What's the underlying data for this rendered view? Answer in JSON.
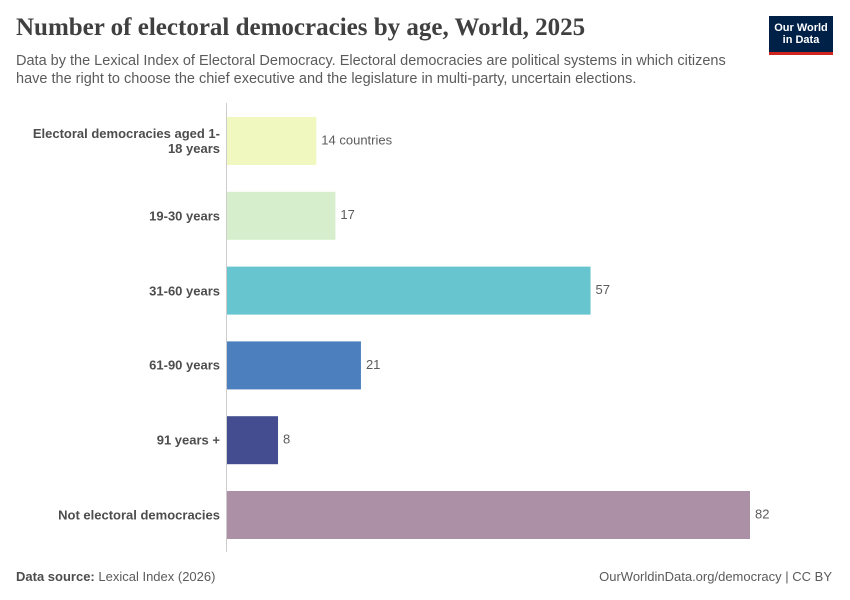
{
  "chart_data": {
    "type": "bar",
    "orientation": "horizontal",
    "title": "Number of electoral democracies by age, World, 2025",
    "subtitle": "Data by the Lexical Index of Electoral Democracy. Electoral democracies are political systems in which citizens have the right to choose the chief executive and the legislature in multi-party, uncertain elections.",
    "categories": [
      "Electoral democracies aged 1-18 years",
      "19-30 years",
      "31-60 years",
      "61-90 years",
      "91 years +",
      "Not electoral democracies"
    ],
    "values": [
      14,
      17,
      57,
      21,
      8,
      82
    ],
    "value_labels": [
      "14 countries",
      "17",
      "57",
      "21",
      "8",
      "82"
    ],
    "colors": [
      "#f1f8bf",
      "#d6eecb",
      "#67c5cf",
      "#4c7fbd",
      "#434d8f",
      "#ab90a6"
    ],
    "source_label": "Data source:",
    "source": "Lexical Index (2026)",
    "footer": "OurWorldinData.org/democracy | CC BY",
    "logo": [
      "Our World",
      "in Data"
    ]
  }
}
